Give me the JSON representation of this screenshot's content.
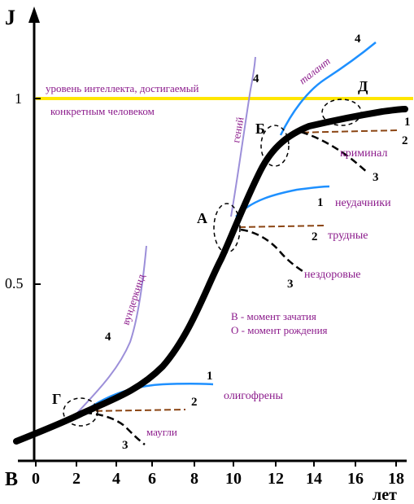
{
  "axes": {
    "y_title": "J",
    "y_ticks": [
      {
        "value": 1,
        "label": "1"
      },
      {
        "value": 0.5,
        "label": "0.5"
      }
    ],
    "x_origin_label": "В",
    "x_ticks": [
      {
        "value": 0,
        "label": "0"
      },
      {
        "value": 2,
        "label": "2"
      },
      {
        "value": 4,
        "label": "4"
      },
      {
        "value": 6,
        "label": "6"
      },
      {
        "value": 8,
        "label": "8"
      },
      {
        "value": 10,
        "label": "10"
      },
      {
        "value": 12,
        "label": "12"
      },
      {
        "value": 14,
        "label": "14"
      },
      {
        "value": 16,
        "label": "16"
      },
      {
        "value": 18,
        "label": "18"
      }
    ],
    "x_title": "лет"
  },
  "level_line": {
    "value": 1,
    "text_line1": "уровень интеллекта, достигаемый",
    "text_line2": "конкретным человеком"
  },
  "points": {
    "G": "Г",
    "A": "А",
    "B": "Б",
    "D": "Д"
  },
  "branch_labels": {
    "g1_num": "1",
    "g1_text": "олигофрены",
    "g2_num": "2",
    "g3_text": "маугли",
    "g3_num": "3",
    "g4_num": "4",
    "g4_text": "вундеркинд",
    "a1_num": "1",
    "a1_text": "неудачники",
    "a2_num": "2",
    "a2_text": "трудные",
    "a3_num": "3",
    "a3_text": "нездоровые",
    "a4_text": "гений",
    "a4_num": "4",
    "b4_text": "талант",
    "b4_num": "4",
    "b1_num": "1",
    "b2_num": "2",
    "b2_text": "криминал",
    "b3_num": "3"
  },
  "legend": {
    "line1": "В - момент зачатия",
    "line2": "О - момент рождения"
  },
  "colors": {
    "main": "#000000",
    "blue": "#1e90ff",
    "brown": "#8b4513",
    "violet": "#9c8fd9",
    "yellow": "#ffe600",
    "text": "#8b1a8b"
  }
}
